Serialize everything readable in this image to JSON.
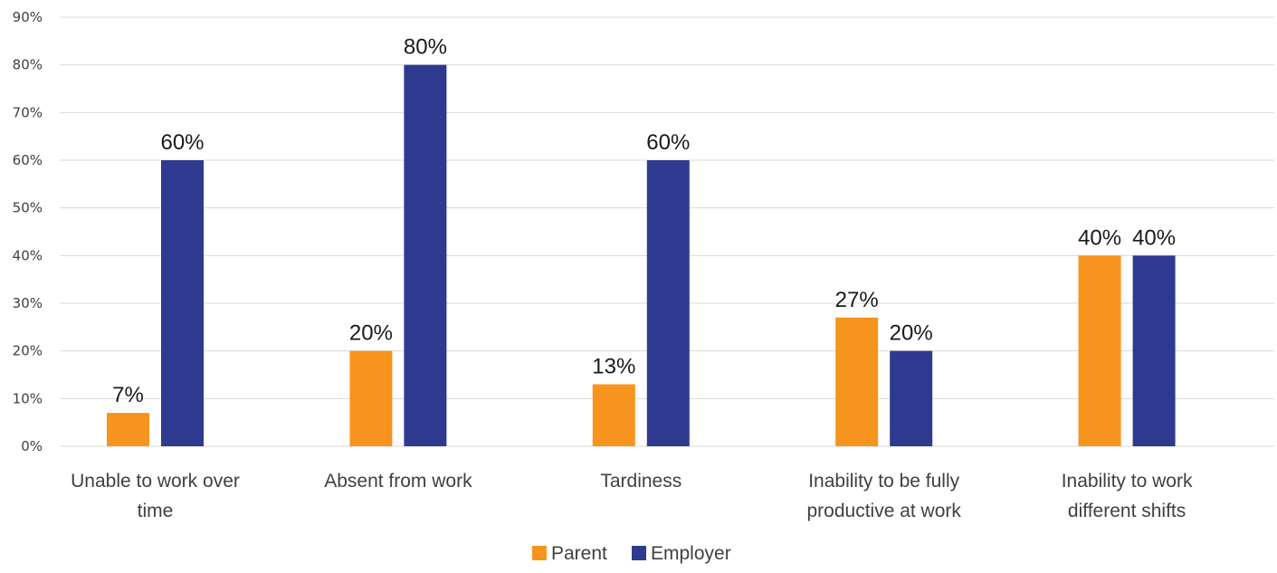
{
  "chart_data": {
    "type": "bar",
    "categories": [
      [
        "Unable to  work over",
        "time"
      ],
      [
        "Absent from work"
      ],
      [
        "Tardiness"
      ],
      [
        "Inability to be fully",
        "productive at work"
      ],
      [
        "Inability to work",
        "different shifts"
      ]
    ],
    "series": [
      {
        "name": "Parent",
        "color": "#F7941D",
        "values": [
          7,
          20,
          13,
          27,
          40
        ],
        "labels": [
          "7%",
          "20%",
          "13%",
          "27%",
          "40%"
        ]
      },
      {
        "name": "Employer",
        "color": "#2E3A8F",
        "values": [
          60,
          80,
          60,
          20,
          40
        ],
        "labels": [
          "60%",
          "80%",
          "60%",
          "20%",
          "40%"
        ]
      }
    ],
    "ylim": [
      0,
      90
    ],
    "yticks": [
      0,
      10,
      20,
      30,
      40,
      50,
      60,
      70,
      80,
      90
    ],
    "ytick_labels": [
      "0%",
      "10%",
      "20%",
      "30%",
      "40%",
      "50%",
      "60%",
      "70%",
      "80%",
      "90%"
    ],
    "grid": true,
    "gridline_color": "#D9D9D9",
    "legend_position": "bottom"
  }
}
